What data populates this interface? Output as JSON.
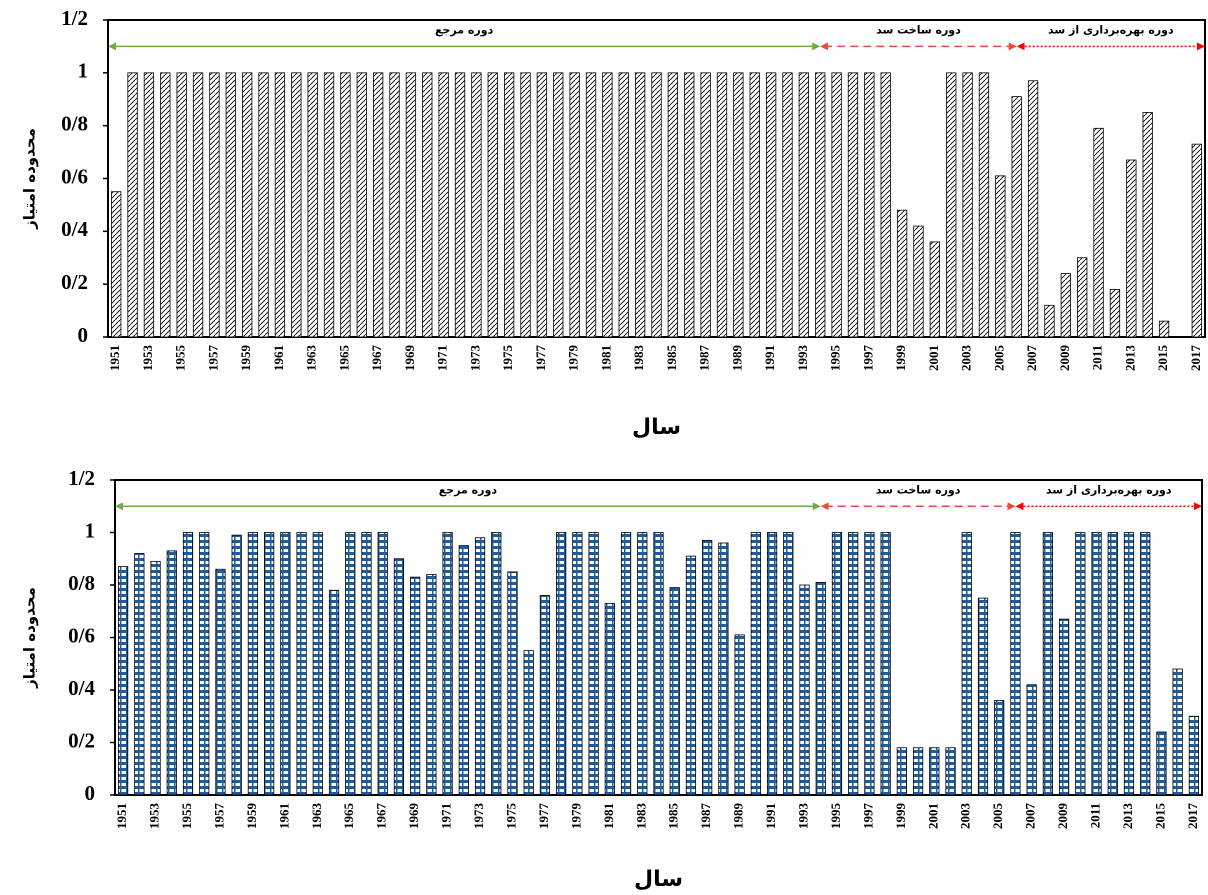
{
  "chart_data": [
    {
      "type": "bar",
      "pattern": "hatch",
      "color": "#000000",
      "x_label": "سال",
      "y_label": "محدوده امتیاز",
      "categories": [
        1951,
        null,
        1953,
        null,
        1955,
        null,
        1957,
        null,
        1959,
        null,
        1961,
        null,
        1963,
        null,
        1965,
        null,
        1967,
        null,
        1969,
        null,
        1971,
        null,
        1973,
        null,
        1975,
        null,
        1977,
        null,
        1979,
        null,
        1981,
        null,
        1983,
        null,
        1985,
        null,
        1987,
        null,
        1989,
        null,
        1991,
        null,
        1993,
        null,
        1995,
        null,
        1997,
        null,
        1999,
        null,
        2001,
        null,
        2003,
        null,
        2005,
        null,
        2007,
        null,
        2009,
        null,
        2011,
        null,
        2013,
        null,
        2015,
        null,
        2017
      ],
      "values": [
        0.55,
        1,
        1,
        1,
        1,
        1,
        1,
        1,
        1,
        1,
        1,
        1,
        1,
        1,
        1,
        1,
        1,
        1,
        1,
        1,
        1,
        1,
        1,
        1,
        1,
        1,
        1,
        1,
        1,
        1,
        1,
        1,
        1,
        1,
        1,
        1,
        1,
        1,
        1,
        1,
        1,
        1,
        1,
        1,
        1,
        1,
        1,
        1,
        0.48,
        0.42,
        0.36,
        1,
        1,
        1,
        0.61,
        0.91,
        0.97,
        0.12,
        0.24,
        0.3,
        0.79,
        0.18,
        0.67,
        0.85,
        0.06,
        0,
        0.73
      ],
      "ylim": [
        0,
        1.2
      ],
      "yticks": [
        0,
        {
          "value": 0.2,
          "label": "0/2"
        },
        {
          "value": 0.4,
          "label": "0/4"
        },
        {
          "value": 0.6,
          "label": "0/6"
        },
        {
          "value": 0.8,
          "label": "0/8"
        },
        1,
        {
          "value": 1.2,
          "label": "1/2"
        }
      ],
      "annotations": [
        {
          "text": "دوره مرجع",
          "color": "#70ad47",
          "style": "solid"
        },
        {
          "text": "دوره ساخت سد",
          "color": "#e74c3c",
          "style": "dashed"
        },
        {
          "text": "دوره بهره‌برداری  از سد",
          "color": "#ff0000",
          "style": "dotted"
        }
      ]
    },
    {
      "type": "bar",
      "pattern": "check",
      "color": "#1f5c99",
      "x_label": "سال",
      "y_label": "محدوده امتیاز",
      "categories": [
        1951,
        null,
        1953,
        null,
        1955,
        null,
        1957,
        null,
        1959,
        null,
        1961,
        null,
        1963,
        null,
        1965,
        null,
        1967,
        null,
        1969,
        null,
        1971,
        null,
        1973,
        null,
        1975,
        null,
        1977,
        null,
        1979,
        null,
        1981,
        null,
        1983,
        null,
        1985,
        null,
        1987,
        null,
        1989,
        null,
        1991,
        null,
        1993,
        null,
        1995,
        null,
        1997,
        null,
        1999,
        null,
        2001,
        null,
        2003,
        null,
        2005,
        null,
        2007,
        null,
        2009,
        null,
        2011,
        null,
        2013,
        null,
        2015,
        null,
        2017
      ],
      "values": [
        0.87,
        0.92,
        0.89,
        0.93,
        1,
        1,
        0.86,
        0.99,
        1,
        1,
        1,
        1,
        1,
        0.78,
        1,
        1,
        1,
        0.9,
        0.83,
        0.84,
        1,
        0.95,
        0.98,
        1,
        0.85,
        0.55,
        0.76,
        1,
        1,
        1,
        0.73,
        1,
        1,
        1,
        0.79,
        0.91,
        0.97,
        0.96,
        0.61,
        1,
        1,
        1,
        0.8,
        0.81,
        1,
        1,
        1,
        1,
        0.18,
        0.18,
        0.18,
        0.18,
        1,
        0.75,
        0.36,
        1,
        0.42,
        1,
        0.67,
        1,
        1,
        1,
        1,
        1,
        0.24,
        0.48,
        0.3
      ],
      "ylim": [
        0,
        1.2
      ],
      "yticks": [
        0,
        {
          "value": 0.2,
          "label": "0/2"
        },
        {
          "value": 0.4,
          "label": "0/4"
        },
        {
          "value": 0.6,
          "label": "0/6"
        },
        {
          "value": 0.8,
          "label": "0/8"
        },
        1,
        {
          "value": 1.2,
          "label": "1/2"
        }
      ],
      "annotations": [
        {
          "text": "دوره مرجع",
          "color": "#70ad47",
          "style": "solid"
        },
        {
          "text": "دوره ساخت سد",
          "color": "#e74c3c",
          "style": "dashed"
        },
        {
          "text": "دوره بهره‌برداری از سد",
          "color": "#ff0000",
          "style": "dotted"
        }
      ]
    }
  ]
}
